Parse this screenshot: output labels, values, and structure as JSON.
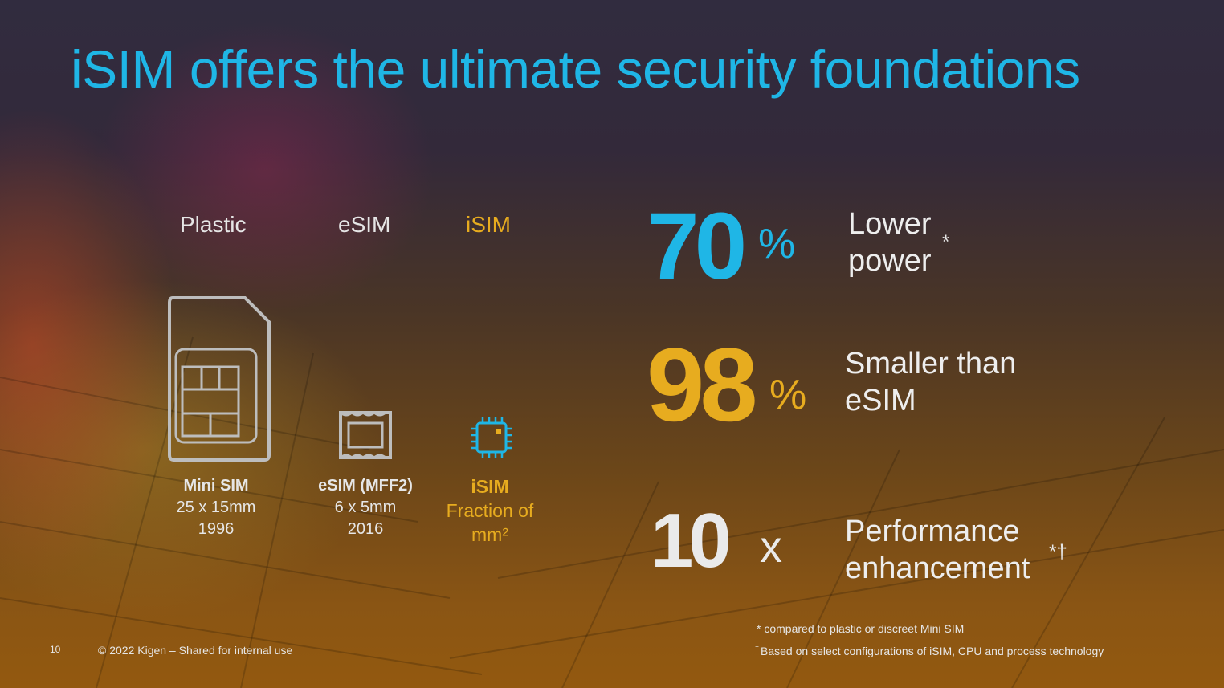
{
  "slide": {
    "title": "iSIM offers the ultimate security foundations",
    "page_number": "10",
    "copyright": "© 2022 Kigen – Shared for internal use"
  },
  "columns": [
    {
      "header": "Plastic",
      "icon": "sim-card-icon",
      "name": "Mini SIM",
      "size": "25 x 15mm",
      "year": "1996"
    },
    {
      "header": "eSIM",
      "icon": "esim-chip-icon",
      "name": "eSIM (MFF2)",
      "size": "6 x 5mm",
      "year": "2016"
    },
    {
      "header": "iSIM",
      "icon": "processor-chip-icon",
      "name": "iSIM",
      "size_line1": "Fraction of",
      "size_line2": "mm²"
    }
  ],
  "stats": [
    {
      "value": "70",
      "unit": "%",
      "desc_line1": "Lower",
      "desc_line2": "power",
      "marker": "*",
      "color": "#1fb6e6"
    },
    {
      "value": "98",
      "unit": "%",
      "desc_line1": "Smaller than",
      "desc_line2": "eSIM",
      "color": "#e7ac1f"
    },
    {
      "value": "10",
      "unit": "x",
      "desc_line1": "Performance",
      "desc_line2": "enhancement",
      "marker": "*†",
      "color": "#eaeaea"
    }
  ],
  "footnotes": {
    "note1_mark": "*",
    "note1": "compared to plastic or discreet Mini SIM",
    "note2_mark": "†",
    "note2": "Based on select configurations of iSIM, CPU and process technology"
  },
  "colors": {
    "accent_blue": "#1fb6e6",
    "accent_gold": "#e7ac1f",
    "text": "#e6e6e6"
  }
}
